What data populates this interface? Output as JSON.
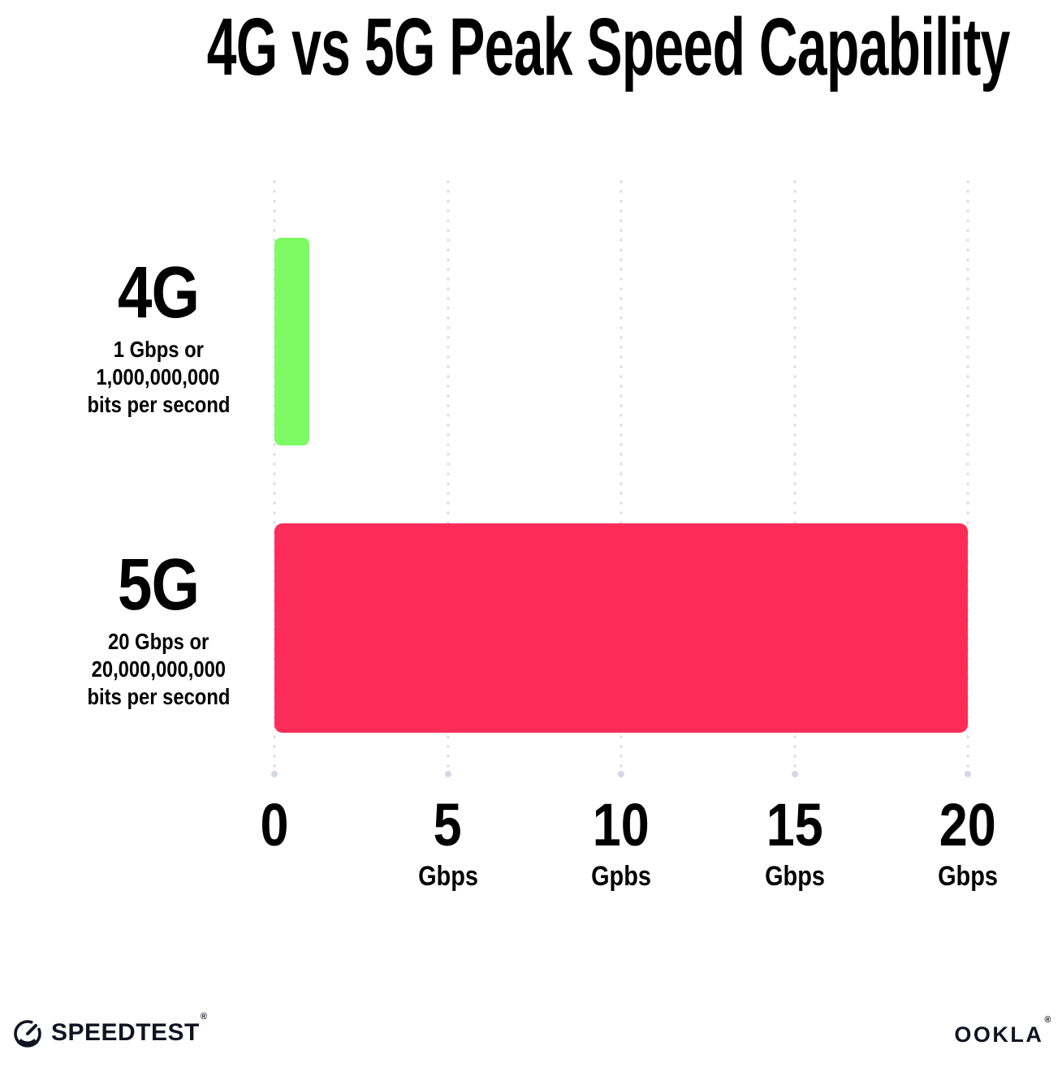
{
  "title": "4G vs 5G Peak Speed Capability",
  "chart_data": {
    "type": "bar",
    "orientation": "horizontal",
    "title": "4G vs 5G Peak Speed Capability",
    "categories": [
      "4G",
      "5G"
    ],
    "values": [
      1,
      20
    ],
    "xlabel_unit": "Gbps",
    "xlim": [
      0,
      20
    ],
    "grid": "dotted-vertical",
    "legend": "none",
    "rows": [
      {
        "label": "4G",
        "value": 1,
        "color": "#7DFB63",
        "sublabel_lines": [
          "1 Gbps or",
          "1,000,000,000",
          "bits per second"
        ]
      },
      {
        "label": "5G",
        "value": 20,
        "color": "#FC2C59",
        "sublabel_lines": [
          "20 Gbps or",
          "20,000,000,000",
          "bits per second"
        ]
      }
    ],
    "x_ticks": [
      {
        "value": 0,
        "label": "0",
        "unit": ""
      },
      {
        "value": 5,
        "label": "5",
        "unit": "Gbps"
      },
      {
        "value": 10,
        "label": "10",
        "unit": "Gpbs"
      },
      {
        "value": 15,
        "label": "15",
        "unit": "Gbps"
      },
      {
        "value": 20,
        "label": "20",
        "unit": "Gbps"
      }
    ]
  },
  "footer": {
    "speedtest_label": "SPEEDTEST",
    "speedtest_mark": "®",
    "ookla_label": "OOKLA",
    "ookla_mark": "®"
  }
}
